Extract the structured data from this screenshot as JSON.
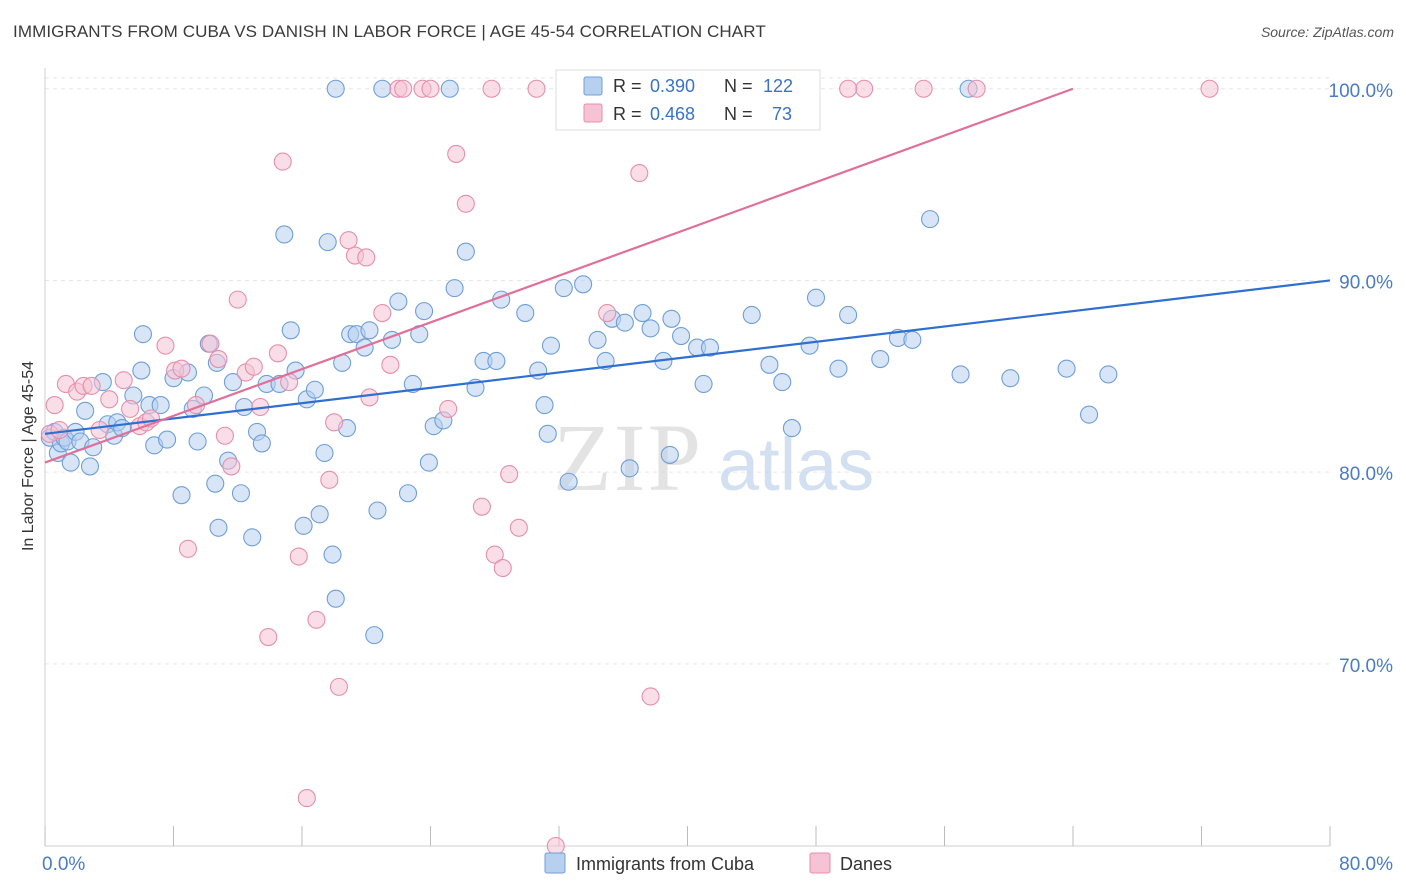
{
  "title": "IMMIGRANTS FROM CUBA VS DANISH IN LABOR FORCE | AGE 45-54 CORRELATION CHART",
  "source": "Source: ZipAtlas.com",
  "watermark": {
    "zip": "ZIP",
    "atlas": "atlas"
  },
  "colors": {
    "series1_fill": "#b8d0f0",
    "series1_stroke": "#6f9fd8",
    "series1_line": "#2e6fd0",
    "series2_fill": "#f6c3d4",
    "series2_stroke": "#e58fac",
    "series2_line": "#e0709a",
    "tick_label": "#4a7cc4",
    "grid": "#e6e6e6"
  },
  "legend": {
    "rows": [
      {
        "r_label": "R = ",
        "r_value": "0.390",
        "n_label": "N = ",
        "n_value": "122"
      },
      {
        "r_label": "R = ",
        "r_value": "0.468",
        "n_label": "N = ",
        "n_value": "73"
      }
    ]
  },
  "chart_data": {
    "type": "scatter",
    "title": "IMMIGRANTS FROM CUBA VS DANISH IN LABOR FORCE | AGE 45-54 CORRELATION CHART",
    "xlabel": "",
    "ylabel": "In Labor Force | Age 45-54",
    "xlim": [
      0,
      80
    ],
    "ylim": [
      60.5,
      101.5
    ],
    "x_tick_labels": [
      "0.0%",
      "80.0%"
    ],
    "y_ticks": [
      70,
      80,
      90,
      100
    ],
    "y_tick_labels": [
      "70.0%",
      "80.0%",
      "90.0%",
      "100.0%"
    ],
    "grid": true,
    "legend_position": "top-center",
    "series": [
      {
        "name": "Immigrants from Cuba",
        "r": 0.39,
        "n": 122,
        "trend": [
          [
            0,
            82.0
          ],
          [
            80,
            90.0
          ]
        ],
        "points": [
          [
            0.3,
            81.8
          ],
          [
            0.6,
            82.1
          ],
          [
            0.8,
            81.0
          ],
          [
            1.0,
            81.5
          ],
          [
            1.2,
            81.8
          ],
          [
            1.4,
            81.6
          ],
          [
            1.6,
            80.5
          ],
          [
            1.9,
            82.1
          ],
          [
            2.2,
            81.6
          ],
          [
            2.5,
            83.2
          ],
          [
            3.0,
            81.3
          ],
          [
            2.8,
            80.3
          ],
          [
            3.6,
            84.7
          ],
          [
            3.9,
            82.5
          ],
          [
            4.3,
            81.9
          ],
          [
            4.5,
            82.6
          ],
          [
            4.8,
            82.3
          ],
          [
            5.5,
            84.0
          ],
          [
            6.0,
            85.3
          ],
          [
            6.1,
            87.2
          ],
          [
            6.5,
            83.5
          ],
          [
            6.8,
            81.4
          ],
          [
            7.2,
            83.5
          ],
          [
            7.6,
            81.7
          ],
          [
            8.0,
            84.9
          ],
          [
            8.5,
            78.8
          ],
          [
            8.9,
            85.2
          ],
          [
            9.2,
            83.3
          ],
          [
            9.5,
            81.6
          ],
          [
            9.9,
            84.0
          ],
          [
            10.2,
            86.7
          ],
          [
            10.7,
            85.7
          ],
          [
            10.6,
            79.4
          ],
          [
            10.8,
            77.1
          ],
          [
            11.4,
            80.6
          ],
          [
            11.7,
            84.7
          ],
          [
            12.2,
            78.9
          ],
          [
            12.4,
            83.4
          ],
          [
            12.9,
            76.6
          ],
          [
            13.2,
            82.1
          ],
          [
            13.5,
            81.5
          ],
          [
            13.8,
            84.6
          ],
          [
            14.6,
            84.6
          ],
          [
            14.9,
            92.4
          ],
          [
            15.3,
            87.4
          ],
          [
            15.6,
            85.3
          ],
          [
            16.1,
            77.2
          ],
          [
            16.3,
            83.8
          ],
          [
            16.8,
            84.3
          ],
          [
            17.1,
            77.8
          ],
          [
            17.4,
            81.0
          ],
          [
            17.6,
            92.0
          ],
          [
            17.9,
            75.7
          ],
          [
            18.1,
            73.4
          ],
          [
            18.5,
            85.7
          ],
          [
            18.8,
            82.3
          ],
          [
            19.0,
            87.2
          ],
          [
            19.4,
            87.2
          ],
          [
            19.9,
            86.5
          ],
          [
            20.2,
            87.4
          ],
          [
            20.5,
            71.5
          ],
          [
            21.0,
            100.0
          ],
          [
            20.7,
            78.0
          ],
          [
            21.6,
            86.9
          ],
          [
            22.0,
            88.9
          ],
          [
            22.6,
            78.9
          ],
          [
            22.9,
            84.6
          ],
          [
            23.3,
            87.2
          ],
          [
            23.6,
            88.4
          ],
          [
            23.9,
            80.5
          ],
          [
            24.2,
            82.4
          ],
          [
            24.8,
            82.7
          ],
          [
            25.5,
            89.6
          ],
          [
            26.2,
            91.5
          ],
          [
            26.8,
            84.4
          ],
          [
            27.3,
            85.8
          ],
          [
            28.1,
            85.8
          ],
          [
            28.4,
            89.0
          ],
          [
            29.9,
            88.3
          ],
          [
            30.7,
            85.3
          ],
          [
            31.1,
            83.5
          ],
          [
            31.3,
            82.0
          ],
          [
            31.5,
            86.6
          ],
          [
            32.3,
            89.6
          ],
          [
            32.6,
            79.5
          ],
          [
            33.5,
            89.8
          ],
          [
            34.4,
            86.9
          ],
          [
            34.9,
            85.8
          ],
          [
            35.3,
            88.0
          ],
          [
            36.1,
            87.8
          ],
          [
            36.4,
            80.2
          ],
          [
            37.2,
            88.3
          ],
          [
            37.7,
            87.5
          ],
          [
            38.5,
            85.8
          ],
          [
            38.9,
            80.9
          ],
          [
            39.0,
            88.0
          ],
          [
            39.6,
            87.1
          ],
          [
            40.6,
            86.5
          ],
          [
            41.0,
            84.6
          ],
          [
            41.4,
            86.5
          ],
          [
            44.0,
            88.2
          ],
          [
            45.1,
            85.6
          ],
          [
            45.9,
            84.7
          ],
          [
            46.5,
            82.3
          ],
          [
            47.6,
            86.6
          ],
          [
            48.0,
            89.1
          ],
          [
            49.4,
            85.4
          ],
          [
            50.0,
            88.2
          ],
          [
            52.0,
            85.9
          ],
          [
            53.1,
            87.0
          ],
          [
            54.0,
            86.9
          ],
          [
            55.1,
            93.2
          ],
          [
            57.0,
            85.1
          ],
          [
            60.1,
            84.9
          ],
          [
            63.6,
            85.4
          ],
          [
            65.0,
            83.0
          ],
          [
            66.2,
            85.1
          ],
          [
            57.5,
            100.0
          ],
          [
            18.1,
            100.0
          ],
          [
            25.2,
            100.0
          ]
        ]
      },
      {
        "name": "Danes",
        "r": 0.468,
        "n": 73,
        "trend": [
          [
            0,
            80.5
          ],
          [
            64,
            100.0
          ]
        ],
        "points": [
          [
            0.3,
            82.0
          ],
          [
            0.6,
            83.5
          ],
          [
            0.9,
            82.2
          ],
          [
            1.3,
            84.6
          ],
          [
            2.0,
            84.2
          ],
          [
            2.4,
            84.5
          ],
          [
            2.9,
            84.5
          ],
          [
            3.4,
            82.2
          ],
          [
            4.0,
            83.8
          ],
          [
            4.9,
            84.8
          ],
          [
            5.3,
            83.3
          ],
          [
            5.9,
            82.4
          ],
          [
            6.3,
            82.6
          ],
          [
            6.6,
            82.8
          ],
          [
            7.5,
            86.6
          ],
          [
            8.1,
            85.3
          ],
          [
            8.5,
            85.4
          ],
          [
            8.9,
            76.0
          ],
          [
            9.4,
            83.5
          ],
          [
            10.3,
            86.7
          ],
          [
            10.8,
            85.9
          ],
          [
            11.2,
            81.9
          ],
          [
            11.6,
            80.3
          ],
          [
            12.0,
            89.0
          ],
          [
            12.5,
            85.2
          ],
          [
            13.0,
            85.5
          ],
          [
            13.4,
            83.4
          ],
          [
            13.9,
            71.4
          ],
          [
            14.5,
            86.2
          ],
          [
            14.8,
            96.2
          ],
          [
            15.2,
            84.7
          ],
          [
            15.8,
            75.6
          ],
          [
            16.3,
            63.0
          ],
          [
            16.9,
            72.3
          ],
          [
            17.7,
            79.6
          ],
          [
            18.0,
            82.6
          ],
          [
            18.3,
            68.8
          ],
          [
            18.9,
            92.1
          ],
          [
            19.3,
            91.3
          ],
          [
            20.0,
            91.2
          ],
          [
            20.2,
            83.9
          ],
          [
            21.0,
            88.3
          ],
          [
            21.5,
            85.6
          ],
          [
            22.0,
            100.0
          ],
          [
            22.3,
            100.0
          ],
          [
            23.5,
            100.0
          ],
          [
            24.0,
            100.0
          ],
          [
            25.1,
            83.3
          ],
          [
            25.6,
            96.6
          ],
          [
            26.2,
            94.0
          ],
          [
            27.2,
            78.2
          ],
          [
            28.0,
            75.7
          ],
          [
            28.5,
            75.0
          ],
          [
            28.9,
            79.9
          ],
          [
            29.5,
            77.1
          ],
          [
            30.6,
            100.0
          ],
          [
            31.8,
            60.5
          ],
          [
            33.2,
            100.0
          ],
          [
            34.2,
            100.0
          ],
          [
            35.0,
            88.3
          ],
          [
            37.0,
            95.6
          ],
          [
            37.7,
            68.3
          ],
          [
            39.6,
            100.0
          ],
          [
            43.0,
            100.0
          ],
          [
            46.7,
            100.0
          ],
          [
            51.0,
            100.0
          ],
          [
            50.0,
            100.0
          ],
          [
            54.7,
            100.0
          ],
          [
            58.0,
            100.0
          ],
          [
            72.5,
            100.0
          ],
          [
            36.1,
            100.0
          ],
          [
            41.2,
            100.0
          ],
          [
            27.8,
            100.0
          ]
        ]
      }
    ]
  }
}
